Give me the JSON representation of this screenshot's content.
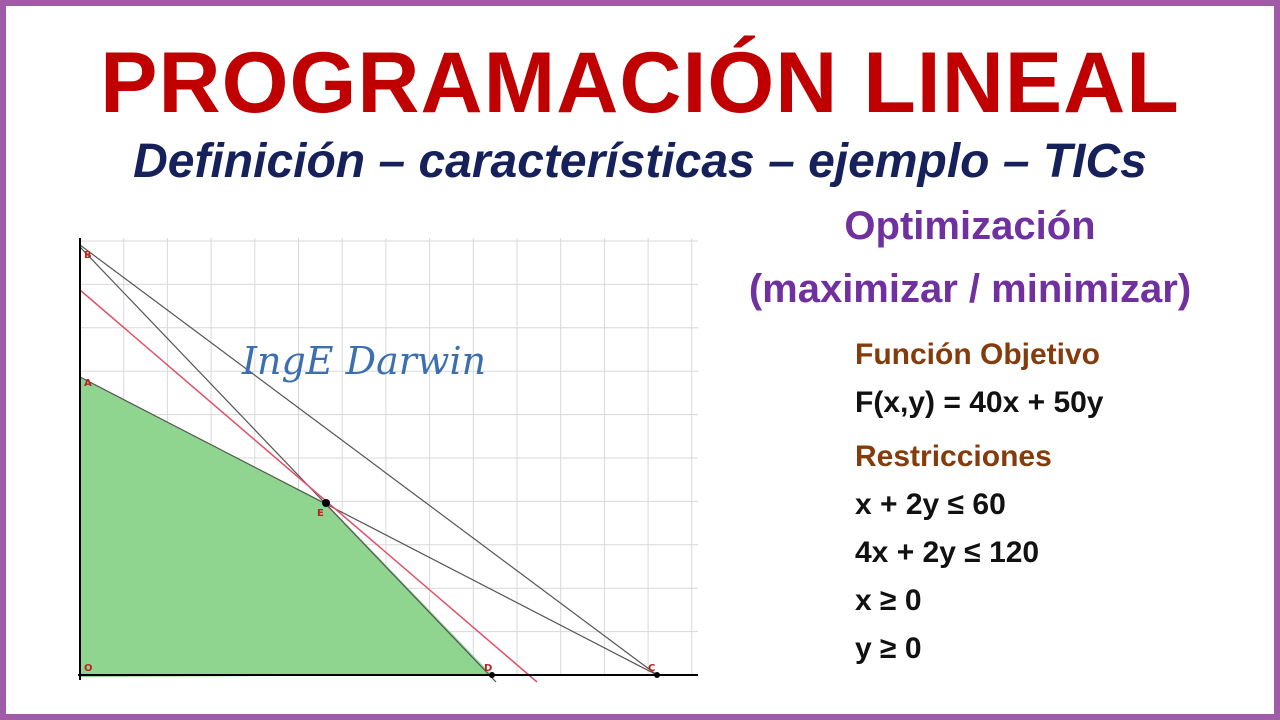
{
  "header": {
    "title": "PROGRAMACIÓN LINEAL",
    "subtitle": "Definición – características – ejemplo – TICs"
  },
  "graph": {
    "watermark": "IngE Darwin",
    "points": [
      "B",
      "A",
      "E",
      "O",
      "D",
      "C"
    ]
  },
  "side": {
    "heading": "Optimización",
    "subheading": "(maximizar / minimizar)",
    "objective_label": "Función Objetivo",
    "objective": "F(x,y) = 40x + 50y",
    "constraints_label": "Restricciones",
    "constraints": [
      "x + 2y ≤ 60",
      "4x + 2y ≤ 120",
      "x ≥ 0",
      "y ≥ 0"
    ]
  }
}
